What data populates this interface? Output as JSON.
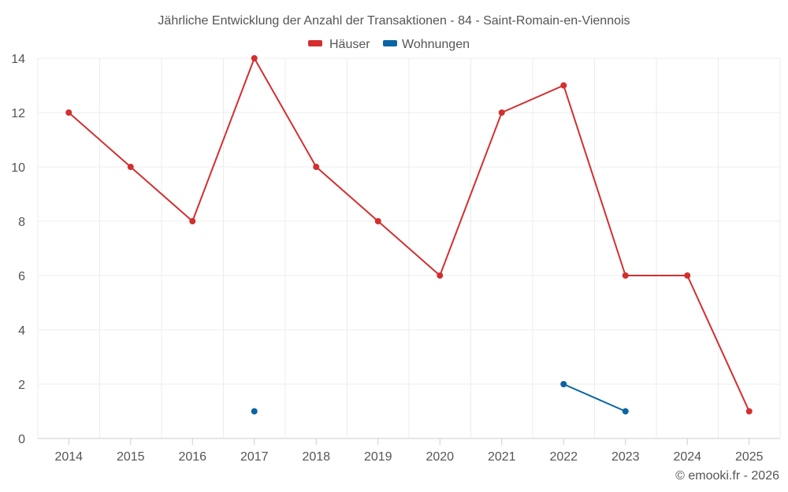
{
  "chart_data": {
    "type": "line",
    "title": "Jährliche Entwicklung der Anzahl der Transaktionen - 84 - Saint-Romain-en-Viennois",
    "categories": [
      "2014",
      "2015",
      "2016",
      "2017",
      "2018",
      "2019",
      "2020",
      "2021",
      "2022",
      "2023",
      "2024",
      "2025"
    ],
    "series": [
      {
        "name": "Häuser",
        "color": "#d32f2f",
        "values": [
          12,
          10,
          8,
          14,
          10,
          8,
          6,
          12,
          13,
          6,
          6,
          1
        ]
      },
      {
        "name": "Wohnungen",
        "color": "#0a64a4",
        "values": [
          null,
          null,
          null,
          1,
          null,
          null,
          null,
          null,
          2,
          1,
          null,
          null
        ]
      }
    ],
    "ylim": [
      0,
      14
    ],
    "yticks": [
      0,
      2,
      4,
      6,
      8,
      10,
      12,
      14
    ],
    "xlabel": "",
    "ylabel": "",
    "grid": true,
    "legend": "top-center"
  },
  "credit": "© emooki.fr - 2026"
}
